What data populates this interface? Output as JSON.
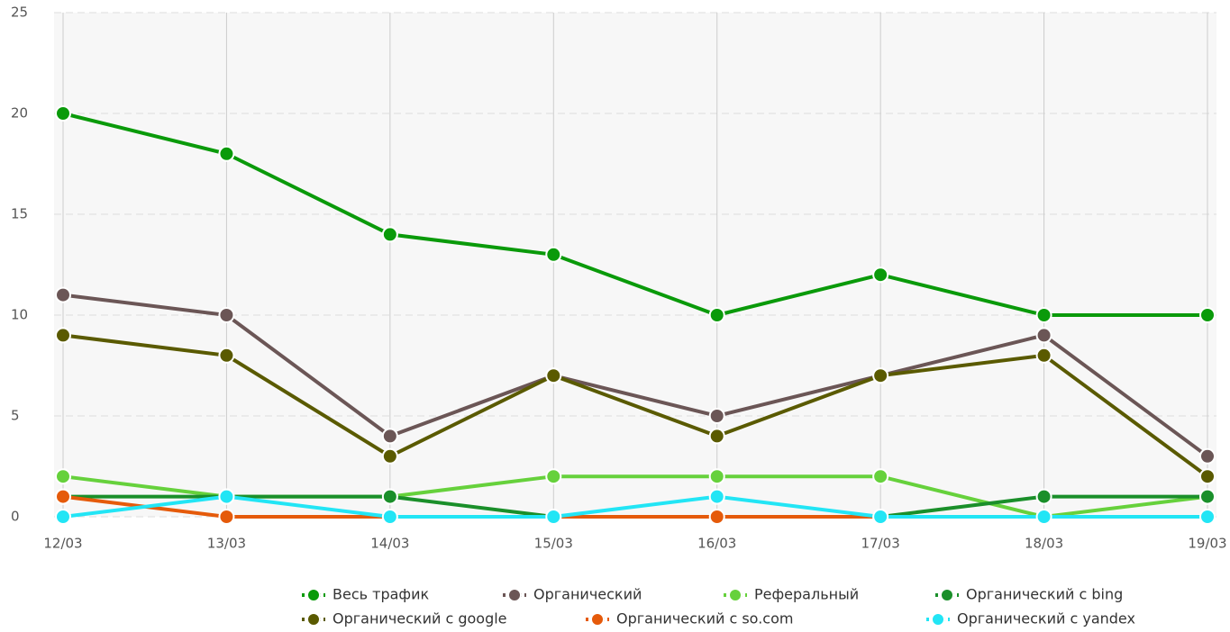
{
  "chart_data": {
    "type": "line",
    "categories": [
      "12/03",
      "13/03",
      "14/03",
      "15/03",
      "16/03",
      "17/03",
      "18/03",
      "19/03"
    ],
    "series": [
      {
        "name": "Весь трафик",
        "color": "#0a9a0a",
        "values": [
          20,
          18,
          14,
          13,
          10,
          12,
          10,
          10
        ]
      },
      {
        "name": "Органический",
        "color": "#6b5656",
        "values": [
          11,
          10,
          4,
          7,
          5,
          7,
          9,
          3
        ]
      },
      {
        "name": "Реферальный",
        "color": "#66d13c",
        "values": [
          2,
          1,
          1,
          2,
          2,
          2,
          0,
          1
        ]
      },
      {
        "name": "Органический с bing",
        "color": "#1a8f2a",
        "values": [
          1,
          1,
          1,
          0,
          0,
          0,
          1,
          1
        ]
      },
      {
        "name": "Органический с google",
        "color": "#5a5a00",
        "values": [
          9,
          8,
          3,
          7,
          4,
          7,
          8,
          2
        ]
      },
      {
        "name": "Органический с so.com",
        "color": "#e55a0a",
        "values": [
          1,
          0,
          0,
          0,
          0,
          0,
          0,
          0
        ]
      },
      {
        "name": "Органический с yandex",
        "color": "#22e5f5",
        "values": [
          0,
          1,
          0,
          0,
          1,
          0,
          0,
          0
        ]
      }
    ],
    "ylim": [
      0,
      25
    ],
    "yticks": [
      0,
      5,
      10,
      15,
      20,
      25
    ],
    "grid": true,
    "legend": "bottom"
  }
}
